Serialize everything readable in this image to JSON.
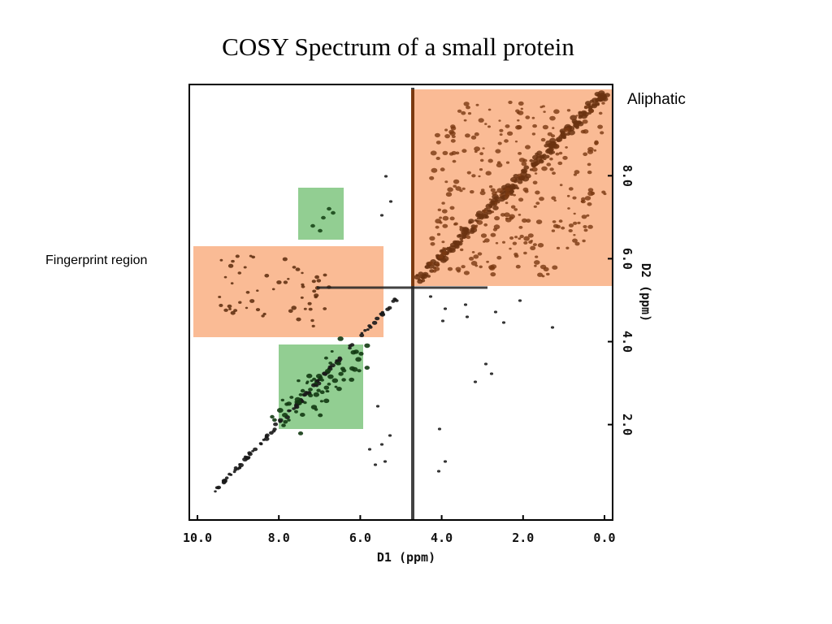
{
  "slide": {
    "title": "COSY Spectrum of a small protein",
    "region_labels": {
      "aliphatic": "Aliphatic",
      "fingerprint": "Fingerprint region"
    }
  },
  "chart_data": {
    "type": "scatter",
    "xlabel": "D1 (ppm)",
    "ylabel": "D2 (ppm)",
    "x_ticks": [
      "10.0",
      "8.0",
      "6.0",
      "4.0",
      "2.0",
      "0.0"
    ],
    "y_ticks": [
      "2.0",
      "4.0",
      "6.0",
      "8.0"
    ],
    "xlim": [
      10.2,
      -0.2
    ],
    "ylim": [
      -0.3,
      10.2
    ],
    "grid": false,
    "highlight_colors": {
      "aliphatic": "#f9b48a",
      "fingerprint": "#f9b48a",
      "amide": "#7fc57f"
    }
  }
}
